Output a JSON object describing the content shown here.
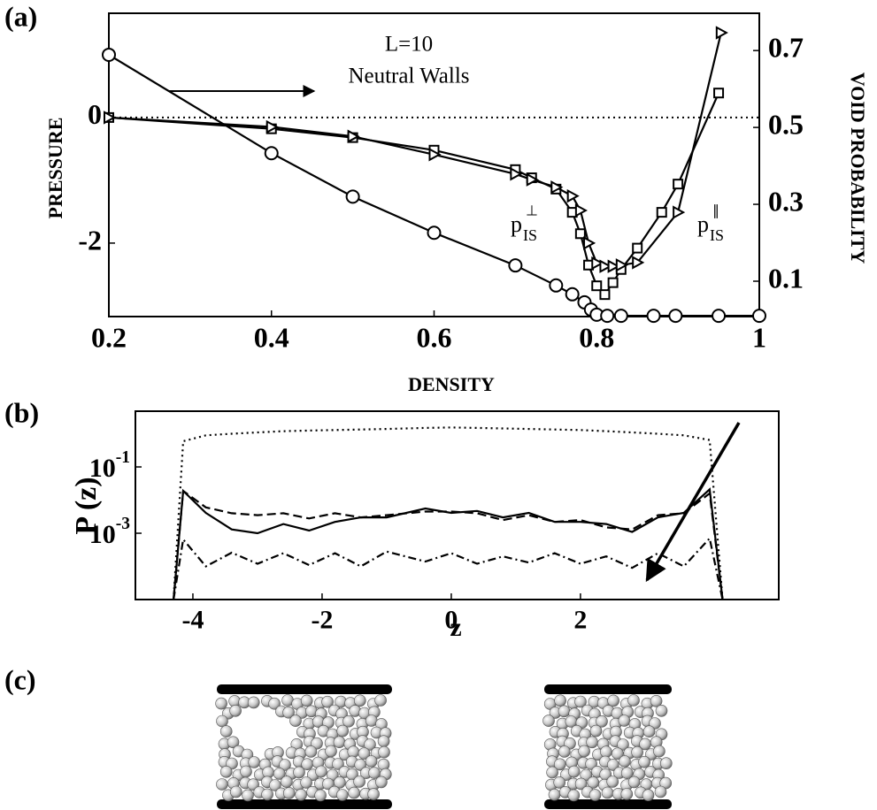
{
  "chart_data": [
    {
      "type": "line",
      "panel_label": "(a)",
      "xlabel": "DENSITY",
      "ylabel": "PRESSURE",
      "y2label": "VOID PROBABILITY",
      "annotations": [
        "L=10",
        "Neutral Walls"
      ],
      "curve_labels": [
        {
          "base": "p",
          "sup": "⊥",
          "sub": "IS"
        },
        {
          "base": "p",
          "sup": "∥",
          "sub": "IS"
        }
      ],
      "xlim": [
        0.2,
        1
      ],
      "xticks": [
        0.2,
        0.4,
        0.6,
        0.8,
        1
      ],
      "ylim": [
        -3.17,
        1.66
      ],
      "yticks": [
        0,
        -2
      ],
      "y2lim": [
        0.008,
        0.797
      ],
      "y2ticks": [
        0.7,
        0.5,
        0.3,
        0.1
      ],
      "hlines": [
        0
      ],
      "series": [
        {
          "marker": "circle",
          "color": "#000000",
          "axis": "y2",
          "dash": "solid",
          "x": [
            0.2,
            0.4,
            0.5,
            0.6,
            0.7,
            0.75,
            0.77,
            0.785,
            0.793,
            0.8,
            0.813,
            0.83,
            0.87,
            0.897,
            0.95,
            1.0
          ],
          "values": [
            0.689,
            0.433,
            0.32,
            0.226,
            0.141,
            0.089,
            0.066,
            0.045,
            0.026,
            0.013,
            0.01,
            0.01,
            0.01,
            0.01,
            0.01,
            0.01
          ]
        },
        {
          "marker": "square",
          "color": "#000000",
          "dash": "solid",
          "x": [
            0.2,
            0.4,
            0.5,
            0.6,
            0.7,
            0.72,
            0.75,
            0.77,
            0.78,
            0.79,
            0.8,
            0.81,
            0.82,
            0.83,
            0.85,
            0.88,
            0.9,
            0.95
          ],
          "values": [
            0,
            -0.18,
            -0.32,
            -0.52,
            -0.83,
            -0.96,
            -1.14,
            -1.51,
            -1.85,
            -2.35,
            -2.68,
            -2.82,
            -2.63,
            -2.42,
            -2.08,
            -1.51,
            -1.06,
            0.39
          ]
        },
        {
          "marker": "triangle",
          "color": "#000000",
          "dash": "solid",
          "x": [
            0.2,
            0.4,
            0.5,
            0.6,
            0.7,
            0.72,
            0.75,
            0.77,
            0.78,
            0.79,
            0.8,
            0.81,
            0.82,
            0.83,
            0.85,
            0.9,
            0.953
          ],
          "values": [
            0,
            -0.15,
            -0.3,
            -0.59,
            -0.9,
            -0.99,
            -1.11,
            -1.25,
            -1.48,
            -2.0,
            -2.32,
            -2.37,
            -2.37,
            -2.35,
            -2.31,
            -1.51,
            1.35
          ]
        }
      ]
    },
    {
      "type": "line",
      "panel_label": "(b)",
      "xlabel": "z",
      "ylabel": "P (z)",
      "log_y": true,
      "xlim": [
        -4.89,
        5.07
      ],
      "xticks": [
        -4,
        -2,
        0,
        2
      ],
      "ylim": [
        1e-05,
        4.8
      ],
      "yticks": [
        {
          "value": 0.1,
          "label": "10",
          "exponent": "-1"
        },
        {
          "value": 0.001,
          "label": "10",
          "exponent": "-3"
        }
      ],
      "x": [
        -4.3,
        -4.15,
        -3.8,
        -3.4,
        -3,
        -2.6,
        -2.2,
        -1.8,
        -1.4,
        -1,
        -0.4,
        0,
        0.4,
        0.8,
        1.2,
        1.6,
        2,
        2.4,
        2.8,
        3.2,
        3.6,
        4,
        4.2
      ],
      "series": [
        {
          "color": "#000000",
          "dash": "dotted",
          "values": [
            1e-05,
            0.6,
            0.9,
            1.0,
            1.1,
            1.2,
            1.25,
            1.3,
            1.35,
            1.4,
            1.5,
            1.55,
            1.5,
            1.45,
            1.4,
            1.35,
            1.3,
            1.2,
            1.1,
            1.0,
            0.9,
            0.65,
            1e-05
          ]
        },
        {
          "color": "#000000",
          "dash": "solid",
          "values": [
            1e-05,
            0.019,
            0.0041,
            0.0013,
            0.001,
            0.0019,
            0.0012,
            0.0022,
            0.003,
            0.003,
            0.0056,
            0.0041,
            0.0047,
            0.003,
            0.0041,
            0.0022,
            0.0022,
            0.0019,
            0.0011,
            0.003,
            0.0041,
            0.021,
            1e-05
          ]
        },
        {
          "color": "#000000",
          "dash": "dashed",
          "values": [
            1e-05,
            0.019,
            0.006,
            0.004,
            0.0035,
            0.004,
            0.0028,
            0.004,
            0.003,
            0.0035,
            0.0045,
            0.0045,
            0.004,
            0.0025,
            0.0035,
            0.0022,
            0.0025,
            0.0015,
            0.0013,
            0.0035,
            0.004,
            0.016,
            1e-05
          ]
        },
        {
          "color": "#000000",
          "dash": "dashdot",
          "values": [
            1e-05,
            0.00065,
            0.0001,
            0.00026,
            0.00012,
            0.00025,
            0.00011,
            0.00025,
            0.0001,
            0.00028,
            0.00014,
            0.00025,
            0.00012,
            0.0002,
            0.00013,
            0.00025,
            0.00012,
            0.0002,
            9e-05,
            0.00025,
            0.0001,
            0.0007,
            1e-05
          ]
        }
      ]
    },
    {
      "type": "image",
      "panel_label": "(c)"
    }
  ]
}
